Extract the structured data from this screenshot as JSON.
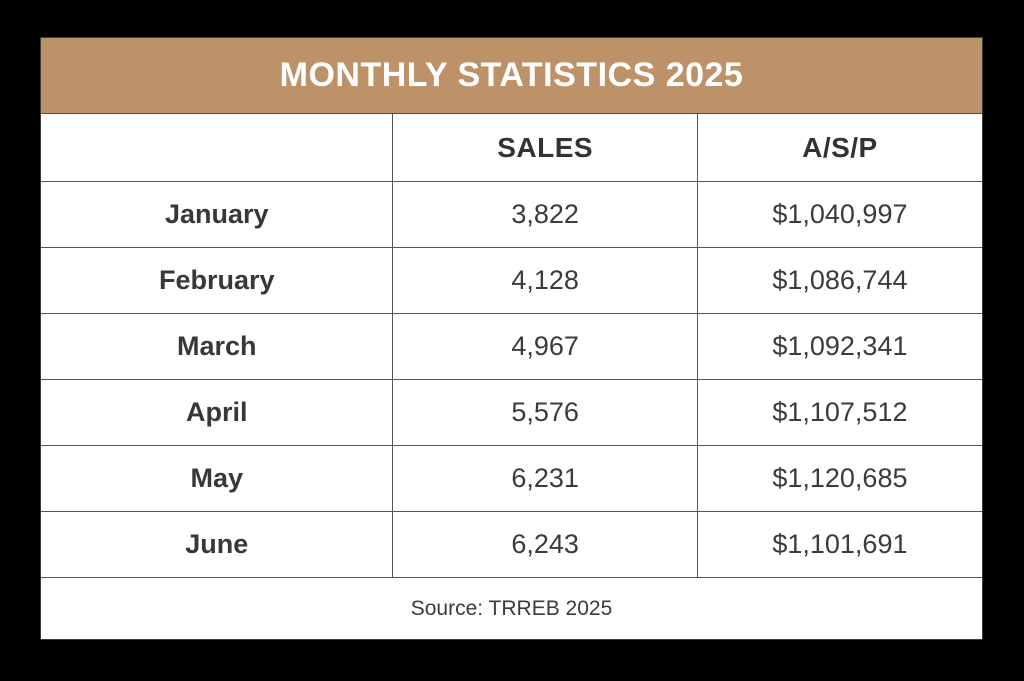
{
  "title": "MONTHLY STATISTICS 2025",
  "columns": {
    "month": "",
    "sales": "SALES",
    "asp": "A/S/P"
  },
  "rows": [
    {
      "month": "January",
      "sales": "3,822",
      "asp": "$1,040,997"
    },
    {
      "month": "February",
      "sales": "4,128",
      "asp": "$1,086,744"
    },
    {
      "month": "March",
      "sales": "4,967",
      "asp": "$1,092,341"
    },
    {
      "month": "April",
      "sales": "5,576",
      "asp": "$1,107,512"
    },
    {
      "month": "May",
      "sales": "6,231",
      "asp": "$1,120,685"
    },
    {
      "month": "June",
      "sales": "6,243",
      "asp": "$1,101,691"
    }
  ],
  "footer": "Source: TRREB 2025",
  "colors": {
    "title_band": "#be9269",
    "title_text": "#ffffff",
    "cell_background": "#ffffff",
    "border": "#555555",
    "text": "#3b3b3b",
    "page_background": "#000000"
  },
  "chart_data": {
    "type": "table",
    "title": "MONTHLY STATISTICS 2025",
    "columns": [
      "",
      "SALES",
      "A/S/P"
    ],
    "categories": [
      "January",
      "February",
      "March",
      "April",
      "May",
      "June"
    ],
    "series": [
      {
        "name": "SALES",
        "values": [
          3822,
          4128,
          4967,
          5576,
          6231,
          6243
        ]
      },
      {
        "name": "A/S/P",
        "values": [
          1040997,
          1086744,
          1092341,
          1107512,
          1120685,
          1101691
        ]
      }
    ],
    "source": "Source: TRREB 2025"
  }
}
